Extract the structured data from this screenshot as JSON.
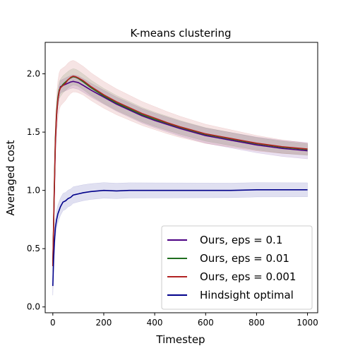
{
  "chart_data": {
    "type": "line",
    "title": "K-means clustering",
    "xlabel": "Timestep",
    "ylabel": "Averaged cost",
    "xlim": [
      -30,
      1040
    ],
    "ylim": [
      -0.05,
      2.27
    ],
    "xticks": [
      0,
      200,
      400,
      600,
      800,
      1000
    ],
    "xtick_labels": [
      "0",
      "200",
      "400",
      "600",
      "800",
      "1000"
    ],
    "yticks": [
      0.0,
      0.5,
      1.0,
      1.5,
      2.0
    ],
    "ytick_labels": [
      "0.0",
      "0.5",
      "1.0",
      "1.5",
      "2.0"
    ],
    "grid": false,
    "legend_position": "lower-right",
    "series": [
      {
        "name": "Ours, eps = 0.1",
        "color": "#4b0082",
        "points": [
          [
            0,
            0.35
          ],
          [
            5,
            0.9
          ],
          [
            10,
            1.4
          ],
          [
            15,
            1.65
          ],
          [
            20,
            1.78
          ],
          [
            25,
            1.85
          ],
          [
            30,
            1.89
          ],
          [
            40,
            1.9
          ],
          [
            50,
            1.91
          ],
          [
            60,
            1.92
          ],
          [
            70,
            1.93
          ],
          [
            80,
            1.935
          ],
          [
            90,
            1.93
          ],
          [
            100,
            1.925
          ],
          [
            120,
            1.9
          ],
          [
            150,
            1.86
          ],
          [
            200,
            1.8
          ],
          [
            250,
            1.74
          ],
          [
            300,
            1.69
          ],
          [
            350,
            1.64
          ],
          [
            400,
            1.6
          ],
          [
            450,
            1.565
          ],
          [
            500,
            1.53
          ],
          [
            550,
            1.5
          ],
          [
            600,
            1.47
          ],
          [
            650,
            1.45
          ],
          [
            700,
            1.43
          ],
          [
            750,
            1.41
          ],
          [
            800,
            1.39
          ],
          [
            850,
            1.375
          ],
          [
            900,
            1.36
          ],
          [
            950,
            1.35
          ],
          [
            1000,
            1.34
          ]
        ],
        "band": [
          0.05,
          0.07
        ]
      },
      {
        "name": "Ours, eps = 0.01",
        "color": "#1f6e1f",
        "points": [
          [
            0,
            0.35
          ],
          [
            5,
            0.95
          ],
          [
            10,
            1.45
          ],
          [
            15,
            1.68
          ],
          [
            20,
            1.8
          ],
          [
            25,
            1.86
          ],
          [
            30,
            1.88
          ],
          [
            40,
            1.91
          ],
          [
            50,
            1.93
          ],
          [
            60,
            1.95
          ],
          [
            70,
            1.965
          ],
          [
            80,
            1.975
          ],
          [
            90,
            1.97
          ],
          [
            100,
            1.96
          ],
          [
            120,
            1.93
          ],
          [
            150,
            1.88
          ],
          [
            200,
            1.81
          ],
          [
            250,
            1.75
          ],
          [
            300,
            1.7
          ],
          [
            350,
            1.65
          ],
          [
            400,
            1.61
          ],
          [
            450,
            1.575
          ],
          [
            500,
            1.54
          ],
          [
            550,
            1.51
          ],
          [
            600,
            1.48
          ],
          [
            650,
            1.46
          ],
          [
            700,
            1.44
          ],
          [
            750,
            1.42
          ],
          [
            800,
            1.4
          ],
          [
            850,
            1.385
          ],
          [
            900,
            1.37
          ],
          [
            950,
            1.36
          ],
          [
            1000,
            1.35
          ]
        ],
        "band": [
          0.08,
          0.05
        ]
      },
      {
        "name": "Ours, eps = 0.001",
        "color": "#b22222",
        "points": [
          [
            0,
            0.35
          ],
          [
            5,
            0.92
          ],
          [
            10,
            1.42
          ],
          [
            15,
            1.66
          ],
          [
            20,
            1.78
          ],
          [
            25,
            1.85
          ],
          [
            30,
            1.88
          ],
          [
            40,
            1.9
          ],
          [
            50,
            1.92
          ],
          [
            60,
            1.95
          ],
          [
            70,
            1.97
          ],
          [
            80,
            1.98
          ],
          [
            90,
            1.975
          ],
          [
            100,
            1.965
          ],
          [
            120,
            1.94
          ],
          [
            150,
            1.89
          ],
          [
            200,
            1.82
          ],
          [
            250,
            1.76
          ],
          [
            300,
            1.71
          ],
          [
            350,
            1.66
          ],
          [
            400,
            1.62
          ],
          [
            450,
            1.58
          ],
          [
            500,
            1.545
          ],
          [
            550,
            1.515
          ],
          [
            600,
            1.485
          ],
          [
            650,
            1.465
          ],
          [
            700,
            1.445
          ],
          [
            750,
            1.425
          ],
          [
            800,
            1.405
          ],
          [
            850,
            1.39
          ],
          [
            900,
            1.375
          ],
          [
            950,
            1.365
          ],
          [
            1000,
            1.355
          ]
        ],
        "band": [
          0.18,
          0.05
        ]
      },
      {
        "name": "Hindsight optimal",
        "color": "#00008b",
        "points": [
          [
            0,
            0.18
          ],
          [
            3,
            0.4
          ],
          [
            6,
            0.55
          ],
          [
            10,
            0.68
          ],
          [
            15,
            0.75
          ],
          [
            20,
            0.8
          ],
          [
            25,
            0.83
          ],
          [
            30,
            0.86
          ],
          [
            40,
            0.9
          ],
          [
            50,
            0.91
          ],
          [
            60,
            0.93
          ],
          [
            70,
            0.94
          ],
          [
            80,
            0.96
          ],
          [
            90,
            0.965
          ],
          [
            100,
            0.97
          ],
          [
            120,
            0.98
          ],
          [
            150,
            0.99
          ],
          [
            200,
            1.0
          ],
          [
            250,
            0.995
          ],
          [
            300,
            1.0
          ],
          [
            400,
            1.0
          ],
          [
            500,
            1.0
          ],
          [
            600,
            1.0
          ],
          [
            700,
            1.0
          ],
          [
            800,
            1.005
          ],
          [
            900,
            1.005
          ],
          [
            1000,
            1.005
          ]
        ],
        "band": [
          0.08,
          0.06
        ]
      }
    ]
  }
}
